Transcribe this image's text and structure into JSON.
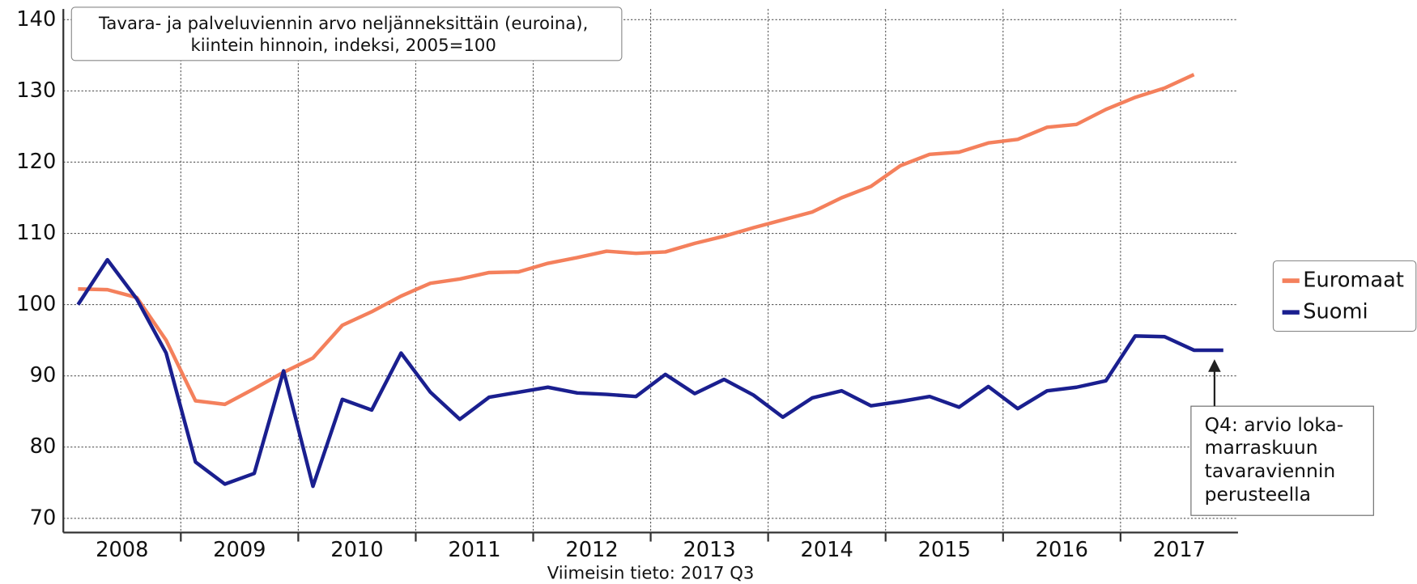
{
  "chart_data": {
    "type": "line",
    "title": [
      "Tavara- ja palveluviennin arvo neljänneksittäin (euroina),",
      "kiintein hinnoin, indeksi, 2005=100"
    ],
    "footnote": "Viimeisin tieto: 2017 Q3",
    "annotation": [
      "Q4: arvio loka-",
      "marraskuun",
      "tavaraviennin",
      "perusteella"
    ],
    "categories": [
      null,
      "2008",
      null,
      null,
      null,
      "2009",
      null,
      null,
      null,
      "2010",
      null,
      null,
      null,
      "2011",
      null,
      null,
      null,
      "2012",
      null,
      null,
      null,
      "2013",
      null,
      null,
      null,
      "2014",
      null,
      null,
      null,
      "2015",
      null,
      null,
      null,
      "2016",
      null,
      null,
      null,
      "2017",
      null,
      null
    ],
    "series": [
      {
        "name": "Euromaat",
        "color": "#f4805c",
        "values": [
          102.2,
          102.1,
          101,
          95,
          86.5,
          86,
          88.2,
          90.5,
          92.5,
          97.1,
          99,
          101.2,
          103,
          103.6,
          104.5,
          104.6,
          105.8,
          106.6,
          107.5,
          107.2,
          107.4,
          108.6,
          109.6,
          110.8,
          111.9,
          113,
          115,
          116.6,
          119.5,
          121.1,
          121.4,
          122.7,
          123.2,
          124.9,
          125.3,
          127.4,
          129.1,
          130.4,
          132.3,
          null
        ]
      },
      {
        "name": "Suomi",
        "color": "#1a1f8f",
        "values": [
          100,
          106.3,
          100.8,
          93.2,
          77.9,
          74.8,
          76.3,
          90.7,
          74.5,
          86.7,
          85.2,
          93.2,
          87.7,
          83.9,
          87,
          87.7,
          88.4,
          87.6,
          87.4,
          87.1,
          90.2,
          87.5,
          89.5,
          87.3,
          84.2,
          86.9,
          87.9,
          85.8,
          86.4,
          87.1,
          85.6,
          88.5,
          85.4,
          87.9,
          88.4,
          89.3,
          95.6,
          95.5,
          93.6,
          93.6
        ]
      }
    ],
    "ylim": [
      68,
      141.5
    ],
    "yticks": [
      70,
      80,
      90,
      100,
      110,
      120,
      130,
      140
    ],
    "grid": true,
    "legend": "right"
  }
}
